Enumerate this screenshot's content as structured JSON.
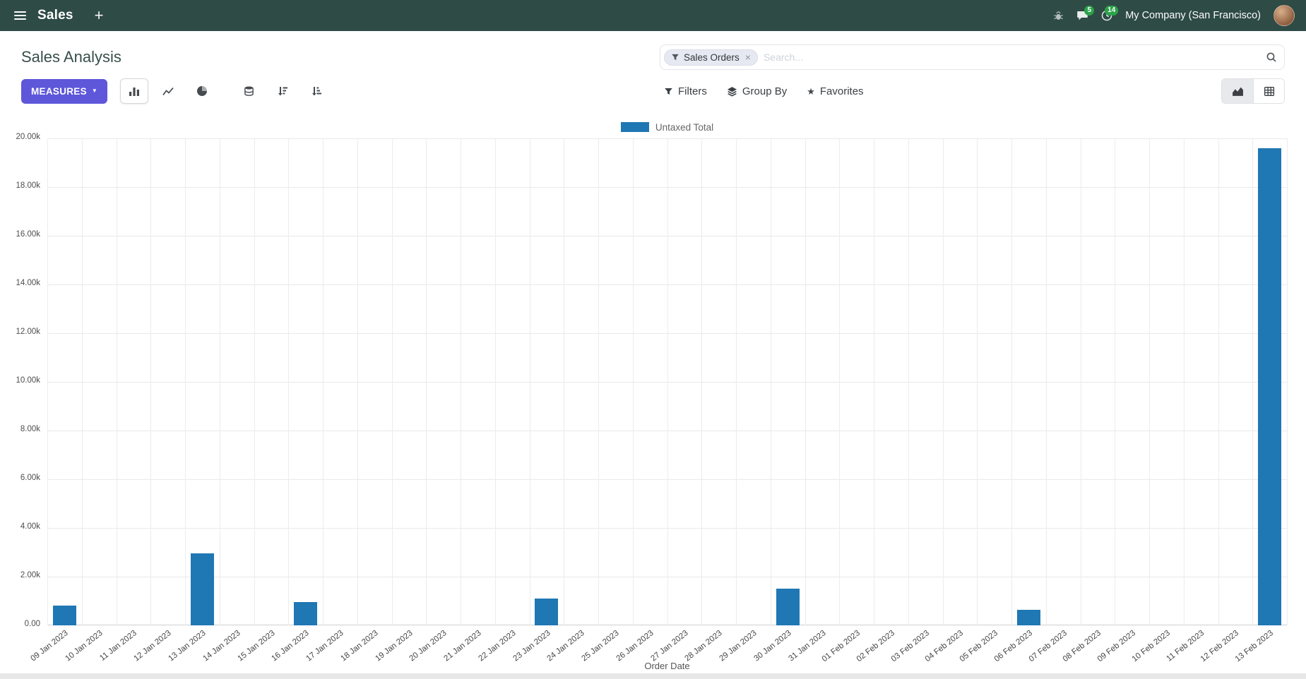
{
  "icons": {
    "plus": "+",
    "close": "×",
    "caret_down": "▼",
    "star": "★"
  },
  "header": {
    "app_name": "Sales",
    "messages_badge": "5",
    "activities_badge": "14",
    "company": "My Company (San Francisco)"
  },
  "control_panel": {
    "title": "Sales Analysis",
    "measures_label": "MEASURES",
    "search": {
      "facet": "Sales Orders",
      "placeholder": "Search..."
    },
    "filters_label": "Filters",
    "group_by_label": "Group By",
    "favorites_label": "Favorites"
  },
  "chart_data": {
    "type": "bar",
    "title": "",
    "legend": [
      "Untaxed Total"
    ],
    "legend_position": "top",
    "series_color": "#1f77b4",
    "xlabel": "Order Date",
    "ylabel": "",
    "ylim": [
      0,
      20000
    ],
    "ytick_step": 2000,
    "ytick_labels": [
      "0.00",
      "2.00k",
      "4.00k",
      "6.00k",
      "8.00k",
      "10.00k",
      "12.00k",
      "14.00k",
      "16.00k",
      "18.00k",
      "20.00k"
    ],
    "grid": true,
    "categories": [
      "09 Jan 2023",
      "10 Jan 2023",
      "11 Jan 2023",
      "12 Jan 2023",
      "13 Jan 2023",
      "14 Jan 2023",
      "15 Jan 2023",
      "16 Jan 2023",
      "17 Jan 2023",
      "18 Jan 2023",
      "19 Jan 2023",
      "20 Jan 2023",
      "21 Jan 2023",
      "22 Jan 2023",
      "23 Jan 2023",
      "24 Jan 2023",
      "25 Jan 2023",
      "26 Jan 2023",
      "27 Jan 2023",
      "28 Jan 2023",
      "29 Jan 2023",
      "30 Jan 2023",
      "31 Jan 2023",
      "01 Feb 2023",
      "02 Feb 2023",
      "03 Feb 2023",
      "04 Feb 2023",
      "05 Feb 2023",
      "06 Feb 2023",
      "07 Feb 2023",
      "08 Feb 2023",
      "09 Feb 2023",
      "10 Feb 2023",
      "11 Feb 2023",
      "12 Feb 2023",
      "13 Feb 2023"
    ],
    "values": [
      800,
      0,
      0,
      0,
      2950,
      0,
      0,
      950,
      0,
      0,
      0,
      0,
      0,
      0,
      1100,
      0,
      0,
      0,
      0,
      0,
      0,
      1500,
      0,
      0,
      0,
      0,
      0,
      0,
      650,
      0,
      0,
      0,
      0,
      0,
      0,
      19600
    ]
  }
}
